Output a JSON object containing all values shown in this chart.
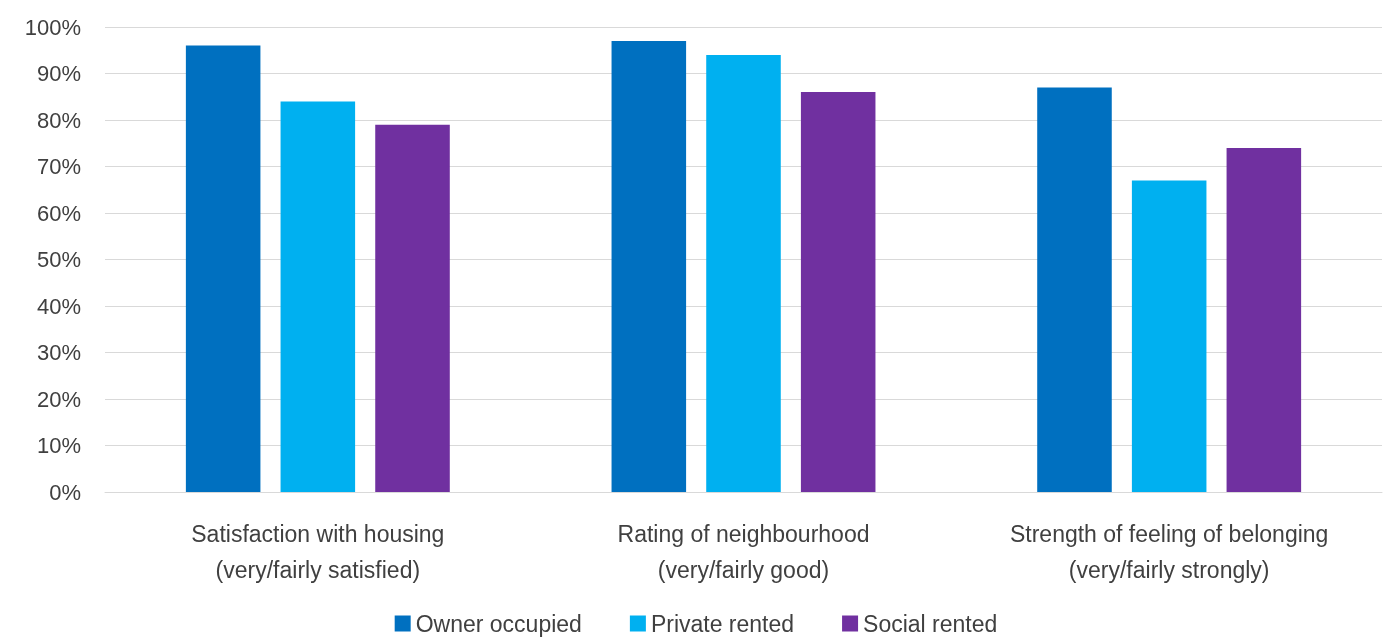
{
  "chart_data": {
    "type": "bar",
    "categories": [
      "Satisfaction with housing\n(very/fairly satisfied)",
      "Rating of neighbourhood\n(very/fairly good)",
      "Strength of feeling of belonging\n(very/fairly strongly)"
    ],
    "series": [
      {
        "name": "Owner occupied",
        "color": "#0070c0",
        "values": [
          96,
          97,
          87
        ]
      },
      {
        "name": "Private rented",
        "color": "#00b0f0",
        "values": [
          84,
          94,
          67
        ]
      },
      {
        "name": "Social rented",
        "color": "#7030a0",
        "values": [
          79,
          86,
          74
        ]
      }
    ],
    "ylim": [
      0,
      100
    ],
    "yticks": [
      {
        "value": 0,
        "label": "0%"
      },
      {
        "value": 10,
        "label": "10%"
      },
      {
        "value": 20,
        "label": "20%"
      },
      {
        "value": 30,
        "label": "30%"
      },
      {
        "value": 40,
        "label": "40%"
      },
      {
        "value": 50,
        "label": "50%"
      },
      {
        "value": 60,
        "label": "60%"
      },
      {
        "value": 70,
        "label": "70%"
      },
      {
        "value": 80,
        "label": "80%"
      },
      {
        "value": 90,
        "label": "90%"
      },
      {
        "value": 100,
        "label": "100%"
      }
    ],
    "grid": "y",
    "legend": "bottom"
  }
}
